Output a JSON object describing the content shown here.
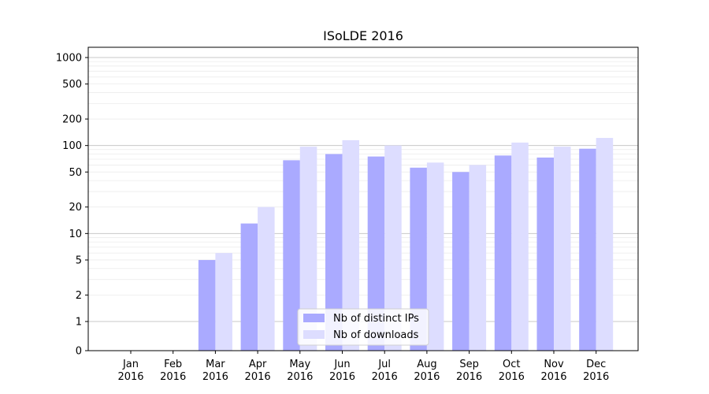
{
  "chart_data": {
    "type": "bar",
    "title": "ISoLDE 2016",
    "xlabel": "",
    "ylabel": "",
    "y_scale": "symlog",
    "ylim": [
      0,
      1200
    ],
    "y_ticks": [
      0,
      1,
      2,
      5,
      10,
      20,
      50,
      100,
      200,
      500,
      1000
    ],
    "y_tick_labels": [
      "0",
      "1",
      "2",
      "5",
      "10",
      "20",
      "50",
      "100",
      "200",
      "500",
      "1000"
    ],
    "grid": true,
    "legend_position": "lower center",
    "categories": [
      {
        "month": "Jan",
        "year": "2016"
      },
      {
        "month": "Feb",
        "year": "2016"
      },
      {
        "month": "Mar",
        "year": "2016"
      },
      {
        "month": "Apr",
        "year": "2016"
      },
      {
        "month": "May",
        "year": "2016"
      },
      {
        "month": "Jun",
        "year": "2016"
      },
      {
        "month": "Jul",
        "year": "2016"
      },
      {
        "month": "Aug",
        "year": "2016"
      },
      {
        "month": "Sep",
        "year": "2016"
      },
      {
        "month": "Oct",
        "year": "2016"
      },
      {
        "month": "Nov",
        "year": "2016"
      },
      {
        "month": "Dec",
        "year": "2016"
      }
    ],
    "series": [
      {
        "name": "Nb of distinct IPs",
        "color": "#aaaaff",
        "values": [
          0,
          0,
          5,
          13,
          68,
          80,
          75,
          56,
          50,
          77,
          73,
          92
        ]
      },
      {
        "name": "Nb of downloads",
        "color": "#ddddff",
        "values": [
          0,
          0,
          6,
          20,
          97,
          115,
          100,
          64,
          60,
          108,
          97,
          122
        ]
      }
    ]
  }
}
